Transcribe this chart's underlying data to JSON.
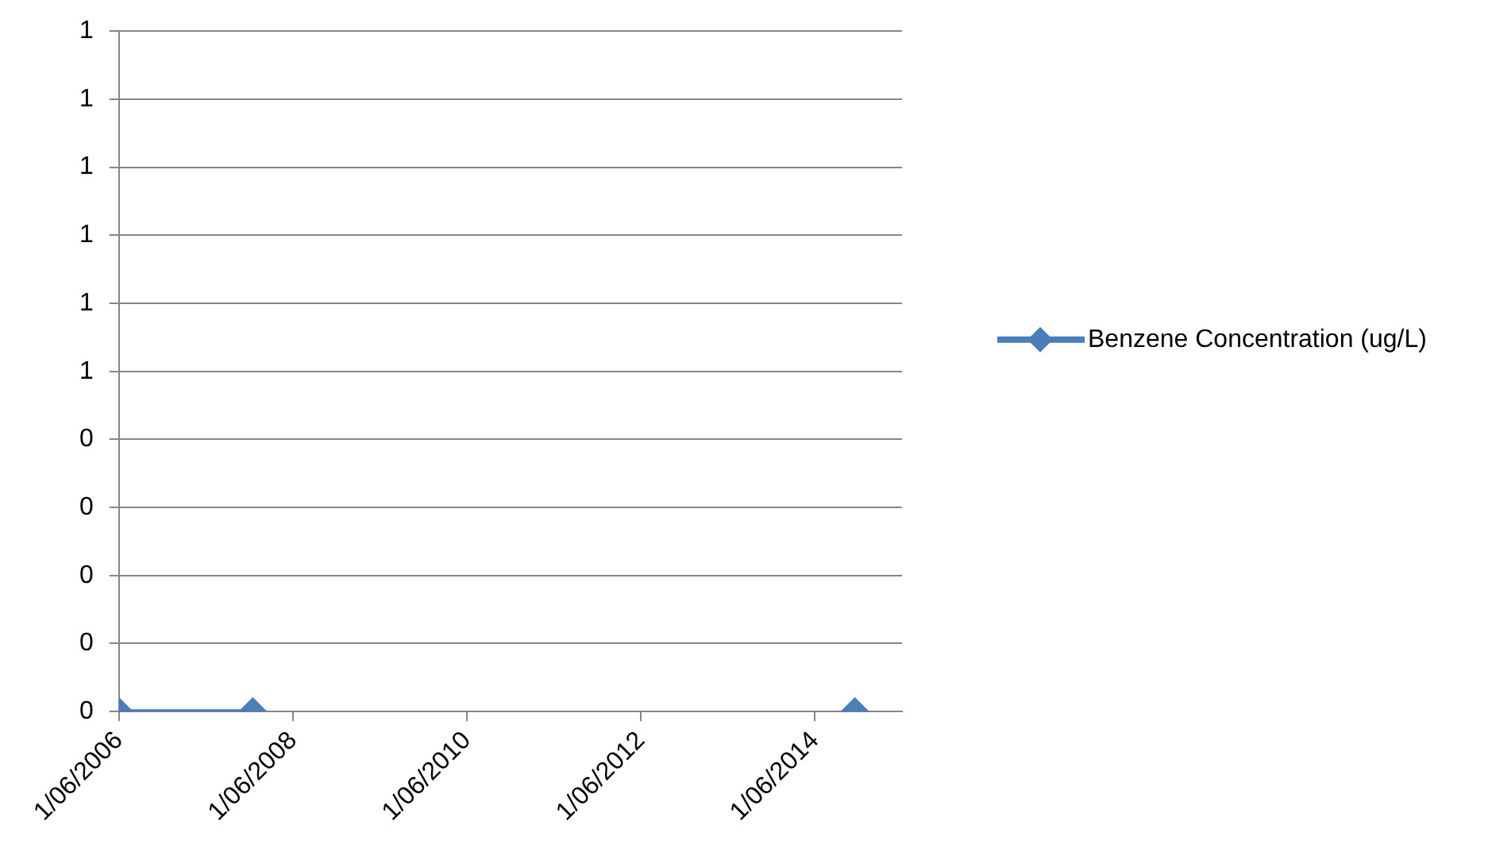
{
  "chart_data": {
    "type": "line",
    "x": [
      "2006-06-01",
      "2007-12-15",
      "2011-01-01",
      "2014-11-15"
    ],
    "series": [
      {
        "name": "Benzene Concentration (ug/L)",
        "color": "#4a7ebb",
        "values": [
          0,
          0,
          null,
          0
        ]
      }
    ],
    "xlim": [
      "2006-06-01",
      "2015-06-01"
    ],
    "xticks": [
      {
        "value": "2006-06-01",
        "label": "1/06/2006"
      },
      {
        "value": "2008-06-01",
        "label": "1/06/2008"
      },
      {
        "value": "2010-06-01",
        "label": "1/06/2010"
      },
      {
        "value": "2012-06-01",
        "label": "1/06/2012"
      },
      {
        "value": "2014-06-01",
        "label": "1/06/2014"
      }
    ],
    "ylim": [
      0,
      1
    ],
    "yticks": [
      {
        "value": 0,
        "label": "0"
      },
      {
        "value": 0.1,
        "label": "0"
      },
      {
        "value": 0.2,
        "label": "0"
      },
      {
        "value": 0.3,
        "label": "0"
      },
      {
        "value": 0.4,
        "label": "0"
      },
      {
        "value": 0.5,
        "label": "1"
      },
      {
        "value": 0.6,
        "label": "1"
      },
      {
        "value": 0.7,
        "label": "1"
      },
      {
        "value": 0.8,
        "label": "1"
      },
      {
        "value": 0.9,
        "label": "1"
      },
      {
        "value": 1,
        "label": "1"
      }
    ],
    "grid": "y",
    "legend": "right",
    "marker": "diamond",
    "line_style": "solid"
  }
}
